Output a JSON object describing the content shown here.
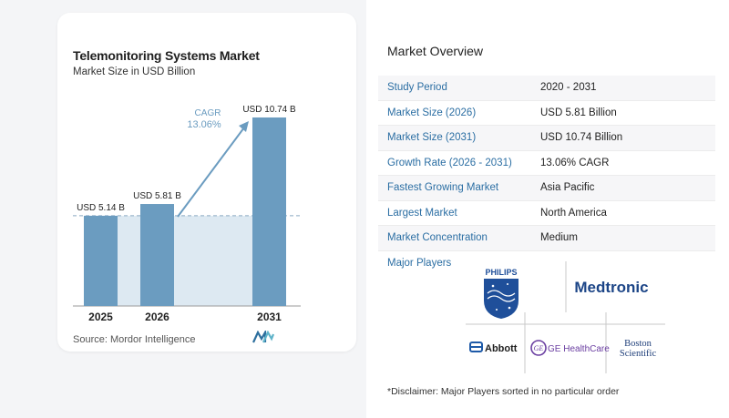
{
  "chart_data": {
    "type": "bar",
    "title": "Telemonitoring Systems Market",
    "subtitle": "Market Size in USD Billion",
    "categories": [
      "2025",
      "2026",
      "2031"
    ],
    "values": [
      5.14,
      5.81,
      10.74
    ],
    "value_labels": [
      "USD 5.14 B",
      "USD 5.81 B",
      "USD 10.74 B"
    ],
    "cagr_label": "CAGR",
    "cagr_value": "13.06%",
    "bar_color": "#6b9cc0",
    "shade_color": "#dde9f2",
    "ylim": [
      0,
      10.74
    ]
  },
  "source": "Source:  Mordor Intelligence",
  "overview": {
    "title": "Market Overview",
    "rows": [
      {
        "key": "Study Period",
        "value": "2020 - 2031"
      },
      {
        "key": "Market Size (2026)",
        "value": "USD 5.81 Billion"
      },
      {
        "key": "Market Size (2031)",
        "value": "USD 10.74 Billion"
      },
      {
        "key": "Growth Rate (2026 - 2031)",
        "value": "13.06% CAGR"
      },
      {
        "key": "Fastest Growing Market",
        "value": "Asia Pacific"
      },
      {
        "key": "Largest Market",
        "value": "North America"
      },
      {
        "key": "Market Concentration",
        "value": "Medium"
      }
    ],
    "players_label": "Major Players",
    "players": [
      "PHILIPS",
      "Medtronic",
      "Abbott",
      "GE HealthCare",
      "Boston Scientific"
    ],
    "disclaimer": "*Disclaimer: Major Players sorted in no particular order"
  }
}
